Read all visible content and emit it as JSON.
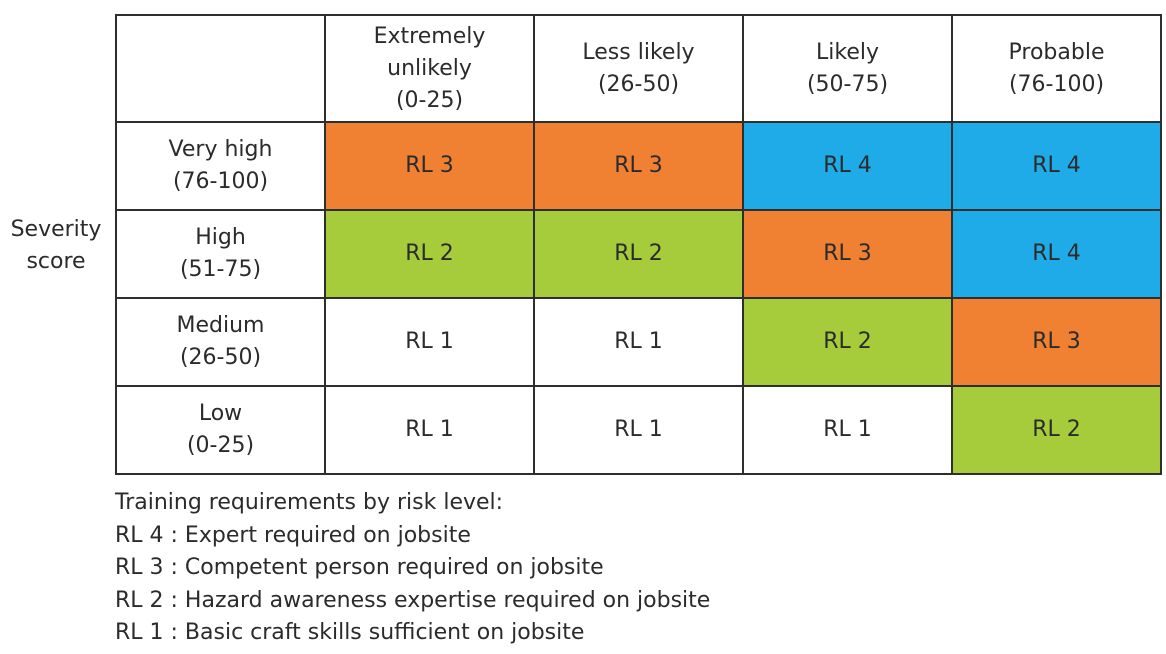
{
  "axis": {
    "severity_line1": "Severity",
    "severity_line2": "score"
  },
  "columns": [
    {
      "line1": "Extremely",
      "line2": "unlikely",
      "line3": "(0-25)"
    },
    {
      "line1": "Less likely",
      "line2": "(26-50)"
    },
    {
      "line1": "Likely",
      "line2": "(50-75)"
    },
    {
      "line1": "Probable",
      "line2": "(76-100)"
    }
  ],
  "rows": [
    {
      "name": "Very high",
      "range": "(76-100)",
      "cells": [
        "RL 3",
        "RL 3",
        "RL 4",
        "RL 4"
      ],
      "colors": [
        "#f08133",
        "#f08133",
        "#1eabe8",
        "#1eabe8"
      ]
    },
    {
      "name": "High",
      "range": "(51-75)",
      "cells": [
        "RL 2",
        "RL 2",
        "RL 3",
        "RL 4"
      ],
      "colors": [
        "#a6cc3c",
        "#a6cc3c",
        "#f08133",
        "#1eabe8"
      ]
    },
    {
      "name": "Medium",
      "range": "(26-50)",
      "cells": [
        "RL 1",
        "RL 1",
        "RL 2",
        "RL 3"
      ],
      "colors": [
        "#ffffff",
        "#ffffff",
        "#a6cc3c",
        "#f08133"
      ]
    },
    {
      "name": "Low",
      "range": "(0-25)",
      "cells": [
        "RL 1",
        "RL 1",
        "RL 1",
        "RL 2"
      ],
      "colors": [
        "#ffffff",
        "#ffffff",
        "#ffffff",
        "#a6cc3c"
      ]
    }
  ],
  "legend": {
    "heading": "Training requirements by risk level:",
    "items": [
      "RL 4 : Expert required on jobsite",
      "RL 3 : Competent person required on jobsite",
      "RL 2 : Hazard awareness expertise required on jobsite",
      "RL 1 : Basic craft skills sufficient on jobsite"
    ]
  }
}
